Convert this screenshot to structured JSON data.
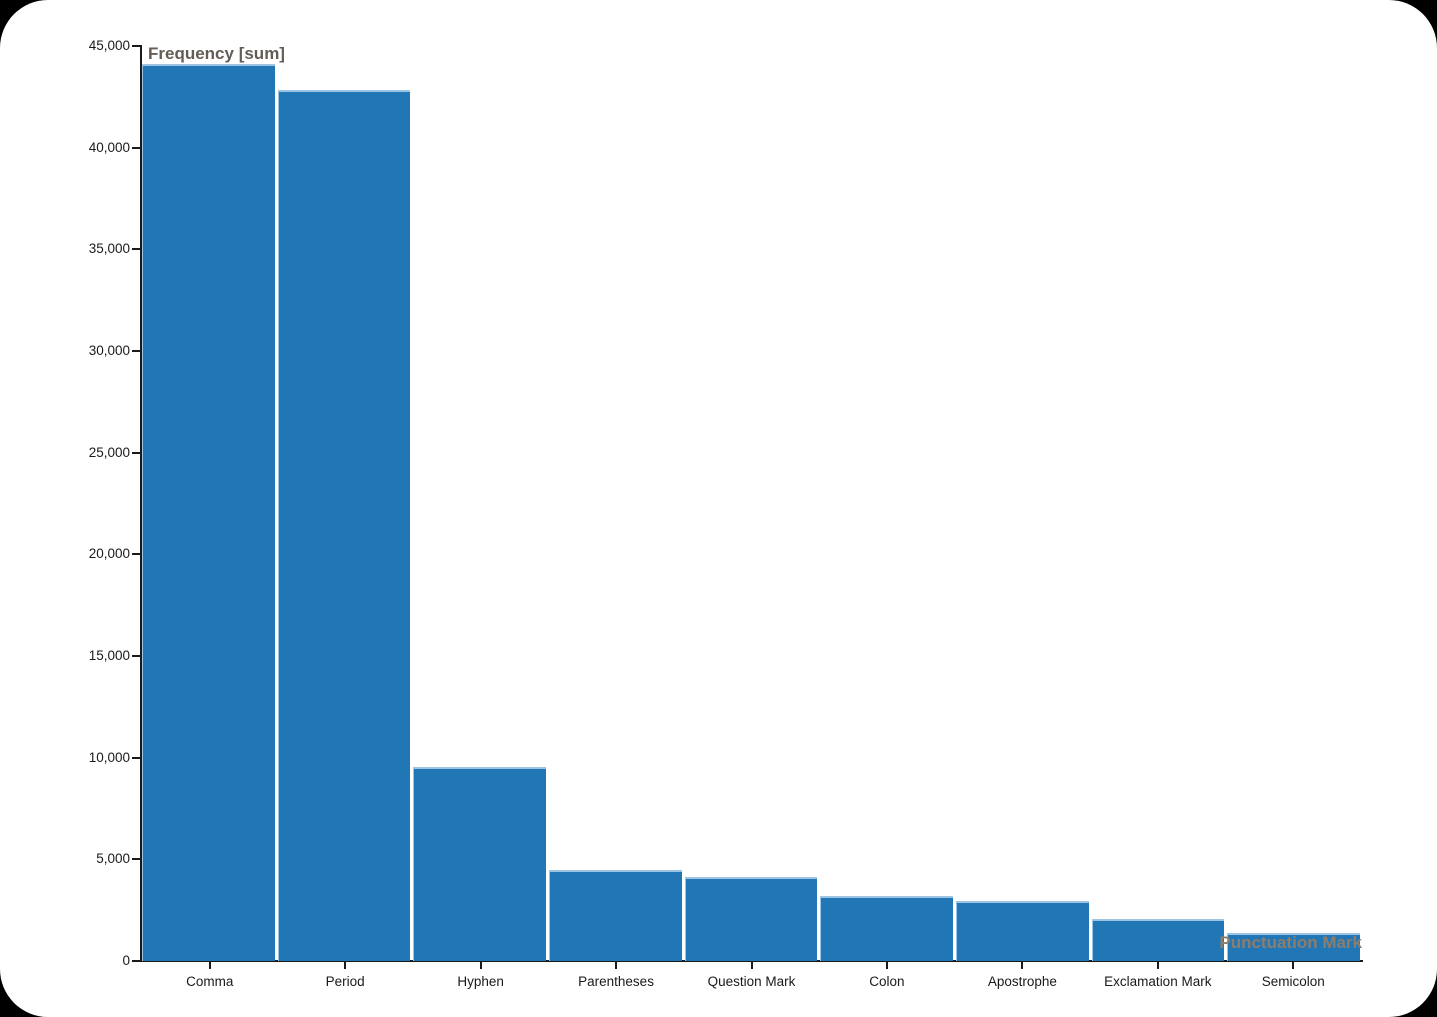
{
  "page": {
    "outer_background": "#000000",
    "canvas_background": "#ffffff"
  },
  "chart_data": {
    "type": "bar",
    "title": "",
    "xlabel": "Punctuation Mark",
    "ylabel": "Frequency [sum]",
    "categories": [
      "Comma",
      "Period",
      "Hyphen",
      "Parentheses",
      "Question Mark",
      "Colon",
      "Apostrophe",
      "Exclamation Mark",
      "Semicolon"
    ],
    "values": [
      44100,
      42840,
      9540,
      4480,
      4130,
      3200,
      2950,
      2060,
      1380
    ],
    "ylim": [
      0,
      45000
    ],
    "y_ticks": [
      0,
      5000,
      10000,
      15000,
      20000,
      25000,
      30000,
      35000,
      40000,
      45000
    ],
    "y_tick_labels": [
      "0",
      "5,000",
      "10,000",
      "15,000",
      "20,000",
      "25,000",
      "30,000",
      "35,000",
      "40,000",
      "45,000"
    ],
    "grid": false,
    "legend": null,
    "bar_color": "#2176b5",
    "bar_edge_color": "#9ec4e4",
    "axis_color": "#1a1a1a",
    "tick_label_color": "#1a1a1a",
    "ylabel_color": "#635d55",
    "xlabel_color": "#8d7e6c"
  }
}
